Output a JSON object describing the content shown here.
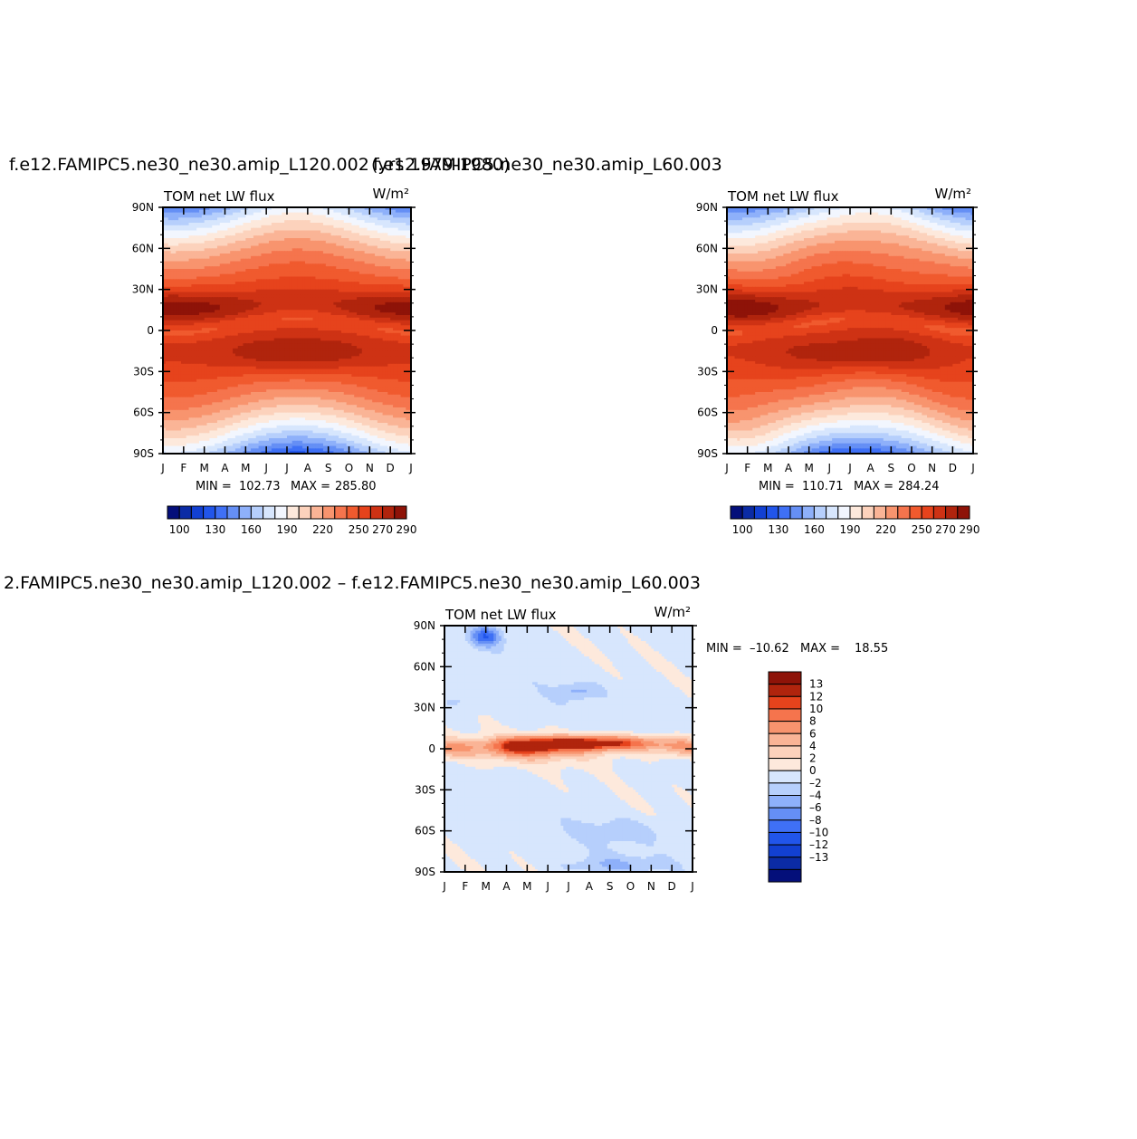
{
  "chart_data": [
    {
      "type": "heatmap",
      "title": "f.e12.FAMIPC5.ne30_ne30.amip_L120.002",
      "overlap_text": "(yrs 1979-1980)",
      "left_label": "TOM net LW flux",
      "units": "W/m²",
      "x_ticks": [
        "J",
        "F",
        "M",
        "A",
        "M",
        "J",
        "J",
        "A",
        "S",
        "O",
        "N",
        "D",
        "J"
      ],
      "y_ticks": [
        "90N",
        "60N",
        "30N",
        "0",
        "30S",
        "60S",
        "90S"
      ],
      "xlim": [
        0,
        12
      ],
      "ylim": [
        -90,
        90
      ],
      "min_label": "MIN = ",
      "min": "102.73",
      "max_label": "MAX = ",
      "max": "285.80",
      "colorbar": {
        "orientation": "horizontal",
        "labels": [
          "100",
          "130",
          "160",
          "190",
          "220",
          "250",
          "270",
          "290"
        ],
        "levels": [
          100,
          110,
          120,
          130,
          140,
          150,
          160,
          170,
          180,
          190,
          200,
          210,
          220,
          230,
          240,
          250,
          260,
          270,
          280,
          290
        ],
        "colors": [
          "#040f7a",
          "#0b2ba5",
          "#1240d2",
          "#2155ea",
          "#3f70f5",
          "#658ff5",
          "#8eb0fa",
          "#b6cffc",
          "#d7e6fd",
          "#f2f6fe",
          "#fde9dc",
          "#fcd2bc",
          "#fab496",
          "#f8946e",
          "#f5744d",
          "#f05a2e",
          "#e6431c",
          "#ce3214",
          "#b0240d",
          "#8e1308"
        ],
        "shown": [
          0,
          1,
          2,
          3,
          4,
          5,
          6,
          7,
          8,
          9,
          10,
          12,
          13,
          14,
          15,
          16,
          17,
          18
        ]
      }
    },
    {
      "type": "heatmap",
      "title": "f.e12.FAMIPC5.ne30_ne30.amip_L60.003",
      "left_label": "TOM net LW flux",
      "units": "W/m²",
      "x_ticks": [
        "J",
        "F",
        "M",
        "A",
        "M",
        "J",
        "J",
        "A",
        "S",
        "O",
        "N",
        "D",
        "J"
      ],
      "y_ticks": [
        "90N",
        "60N",
        "30N",
        "0",
        "30S",
        "60S",
        "90S"
      ],
      "xlim": [
        0,
        12
      ],
      "ylim": [
        -90,
        90
      ],
      "min_label": "MIN = ",
      "min": "110.71",
      "max_label": "MAX = ",
      "max": "284.24"
    },
    {
      "type": "heatmap",
      "title": "2.FAMIPC5.ne30_ne30.amip_L120.002 – f.e12.FAMIPC5.ne30_ne30.amip_L60.003",
      "left_label": "TOM net LW flux",
      "units": "W/m²",
      "x_ticks": [
        "J",
        "F",
        "M",
        "A",
        "M",
        "J",
        "J",
        "A",
        "S",
        "O",
        "N",
        "D",
        "J"
      ],
      "y_ticks": [
        "90N",
        "60N",
        "30N",
        "0",
        "30S",
        "60S",
        "90S"
      ],
      "xlim": [
        0,
        12
      ],
      "ylim": [
        -90,
        90
      ],
      "min_label": "MIN = ",
      "min": "–10.62",
      "max_label": "MAX = ",
      "max": "18.55",
      "colorbar": {
        "orientation": "vertical",
        "labels": [
          "13",
          "12",
          "10",
          "8",
          "6",
          "4",
          "2",
          "0",
          "–2",
          "–4",
          "–6",
          "–8",
          "–10",
          "–12",
          "–13"
        ],
        "levels": [
          -13,
          -12,
          -10,
          -8,
          -6,
          -4,
          -2,
          0,
          2,
          4,
          6,
          8,
          10,
          12,
          13
        ],
        "colors": [
          "#040f7a",
          "#0b2ba5",
          "#1240d2",
          "#2155ea",
          "#3f70f5",
          "#658ff5",
          "#8eb0fa",
          "#b6cffc",
          "#d7e6fd",
          "#fde9dc",
          "#fcd2bc",
          "#fab496",
          "#f8946e",
          "#f5744d",
          "#e6431c",
          "#b0240d",
          "#8e1308"
        ]
      }
    }
  ]
}
